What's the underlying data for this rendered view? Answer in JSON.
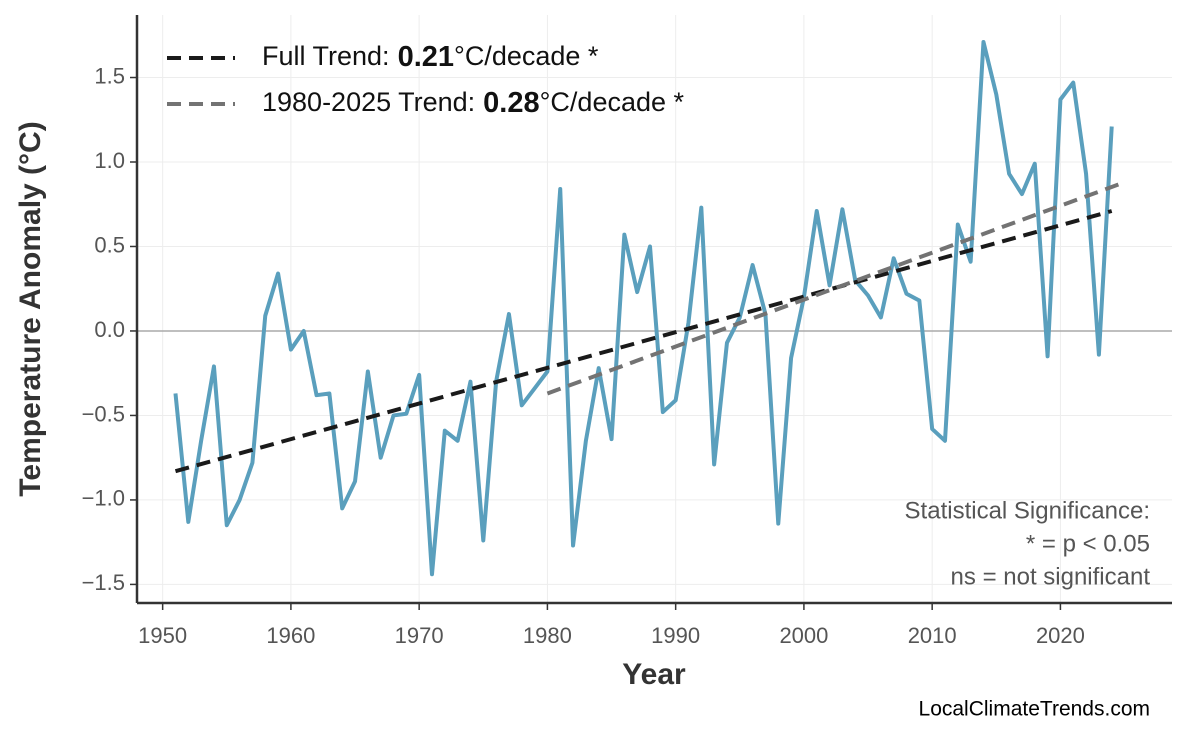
{
  "chart_data": {
    "type": "line",
    "x_label": "Year",
    "y_label": "Temperature Anomaly (°C)",
    "xlim": [
      1948,
      2028.7
    ],
    "ylim": [
      -1.61,
      1.87
    ],
    "xticks": [
      1950,
      1960,
      1970,
      1980,
      1990,
      2000,
      2010,
      2020
    ],
    "yticks": [
      {
        "value": -1.5,
        "label": "−1.5"
      },
      {
        "value": -1.0,
        "label": "−1.0"
      },
      {
        "value": -0.5,
        "label": "−0.5"
      },
      {
        "value": 0,
        "label": "0.0"
      },
      0.5,
      {
        "value": 1.0,
        "label": "1.0"
      },
      1.5
    ],
    "grid": true,
    "hline": 0,
    "x": [
      1951,
      1952,
      1953,
      1954,
      1955,
      1956,
      1957,
      1958,
      1959,
      1960,
      1961,
      1962,
      1963,
      1964,
      1965,
      1966,
      1967,
      1968,
      1969,
      1970,
      1971,
      1972,
      1973,
      1974,
      1975,
      1976,
      1977,
      1978,
      1979,
      1980,
      1981,
      1982,
      1983,
      1984,
      1985,
      1986,
      1987,
      1988,
      1989,
      1990,
      1991,
      1992,
      1993,
      1994,
      1995,
      1996,
      1997,
      1998,
      1999,
      2000,
      2001,
      2002,
      2003,
      2004,
      2005,
      2006,
      2007,
      2008,
      2009,
      2010,
      2011,
      2012,
      2013,
      2014,
      2015,
      2016,
      2017,
      2018,
      2019,
      2020,
      2021,
      2022,
      2023,
      2024
    ],
    "values": [
      -0.37,
      -1.13,
      -0.65,
      -0.21,
      -1.15,
      -1.0,
      -0.78,
      0.09,
      0.34,
      -0.11,
      0.0,
      -0.38,
      -0.37,
      -1.05,
      -0.89,
      -0.24,
      -0.75,
      -0.5,
      -0.49,
      -0.26,
      -1.44,
      -0.59,
      -0.65,
      -0.3,
      -1.24,
      -0.3,
      0.1,
      -0.44,
      -0.34,
      -0.24,
      0.84,
      -1.27,
      -0.65,
      -0.22,
      -0.64,
      0.57,
      0.23,
      0.5,
      -0.48,
      -0.41,
      0.05,
      0.73,
      -0.79,
      -0.07,
      0.08,
      0.39,
      0.1,
      -1.14,
      -0.16,
      0.2,
      0.71,
      0.27,
      0.72,
      0.3,
      0.21,
      0.08,
      0.43,
      0.22,
      0.18,
      -0.58,
      -0.65,
      0.63,
      0.41,
      1.71,
      1.4,
      0.93,
      0.81,
      0.99,
      -0.15,
      1.37,
      1.47,
      0.93,
      -0.14,
      1.21
    ],
    "color": "#5a9fbd",
    "trends": [
      {
        "label": "Full Trend:",
        "slope": 0.21,
        "unit": "°C/decade *",
        "x": [
          1951,
          2024
        ],
        "values": [
          -0.83,
          0.71
        ],
        "color": "#1a1a1a"
      },
      {
        "label": "1980-2025 Trend:",
        "slope": 0.28,
        "unit": "°C/decade *",
        "x": [
          1980,
          2025
        ],
        "values": [
          -0.37,
          0.88
        ],
        "color": "#737373"
      }
    ],
    "annotation": [
      "Statistical Significance:",
      "* = p < 0.05",
      "ns = not significant"
    ],
    "watermark": "LocalClimateTrends.com"
  }
}
